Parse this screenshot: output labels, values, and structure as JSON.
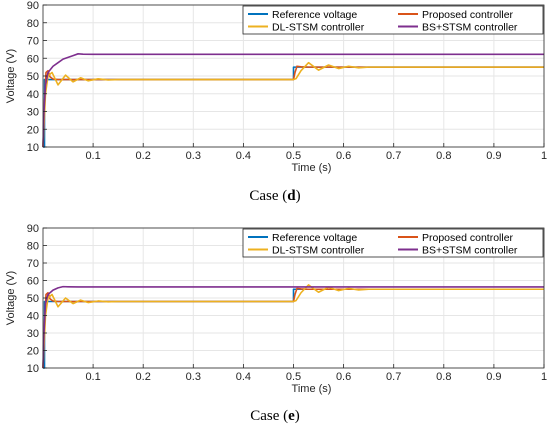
{
  "chart_data": [
    {
      "type": "line",
      "caption": {
        "prefix": "Case (",
        "letter": "d",
        "suffix": ")"
      },
      "xlabel": "Time (s)",
      "ylabel": "Voltage (V)",
      "xlim": [
        0,
        1
      ],
      "ylim": [
        10,
        90
      ],
      "xticks": [
        "0.1",
        "0.2",
        "0.3",
        "0.4",
        "0.5",
        "0.6",
        "0.7",
        "0.8",
        "0.9",
        "1"
      ],
      "yticks": [
        "10",
        "20",
        "30",
        "40",
        "50",
        "60",
        "70",
        "80",
        "90"
      ],
      "grid": true,
      "legend_position": "top-right",
      "series": [
        {
          "name": "Reference voltage",
          "color": "#0072bd",
          "x": [
            0,
            0.003,
            0.003,
            0.5,
            0.5,
            1
          ],
          "y": [
            10,
            10,
            48,
            48,
            55,
            55
          ]
        },
        {
          "name": "Proposed controller",
          "color": "#d95319",
          "x": [
            0,
            0.003,
            0.006,
            0.01,
            0.014,
            0.02,
            0.03,
            0.5,
            0.503,
            0.507,
            0.515,
            0.53,
            1
          ],
          "y": [
            10,
            35,
            52,
            53,
            49.5,
            48.3,
            48,
            48,
            52,
            55.5,
            55.2,
            55,
            55
          ]
        },
        {
          "name": "DL-STSM controller",
          "color": "#edb120",
          "x": [
            0,
            0.005,
            0.01,
            0.018,
            0.03,
            0.045,
            0.06,
            0.075,
            0.09,
            0.11,
            0.13,
            0.15,
            0.5,
            0.505,
            0.515,
            0.53,
            0.55,
            0.57,
            0.59,
            0.61,
            0.63,
            0.65,
            1
          ],
          "y": [
            10,
            40,
            50,
            52,
            45,
            50.5,
            46.7,
            49,
            47.3,
            48.4,
            47.8,
            48,
            48,
            48.5,
            53,
            57.5,
            53.3,
            56.2,
            54.2,
            55.5,
            54.6,
            55,
            55
          ]
        },
        {
          "name": "BS+STSM controller",
          "color": "#7e2f8e",
          "x": [
            0,
            0.002,
            0.005,
            0.01,
            0.02,
            0.03,
            0.04,
            0.05,
            0.06,
            0.07,
            0.08,
            0.1,
            1
          ],
          "y": [
            10,
            30,
            45,
            52,
            55.5,
            57.5,
            59.5,
            60.5,
            61.5,
            62.5,
            62.3,
            62.2,
            62.2
          ]
        }
      ]
    },
    {
      "type": "line",
      "caption": {
        "prefix": "Case (",
        "letter": "e",
        "suffix": ")"
      },
      "xlabel": "Time (s)",
      "ylabel": "Voltage (V)",
      "xlim": [
        0,
        1
      ],
      "ylim": [
        10,
        90
      ],
      "xticks": [
        "0.1",
        "0.2",
        "0.3",
        "0.4",
        "0.5",
        "0.6",
        "0.7",
        "0.8",
        "0.9",
        "1"
      ],
      "yticks": [
        "10",
        "20",
        "30",
        "40",
        "50",
        "60",
        "70",
        "80",
        "90"
      ],
      "grid": true,
      "legend_position": "top-right",
      "series": [
        {
          "name": "Reference voltage",
          "color": "#0072bd",
          "x": [
            0,
            0.003,
            0.003,
            0.5,
            0.5,
            1
          ],
          "y": [
            10,
            10,
            48,
            48,
            55,
            55
          ]
        },
        {
          "name": "Proposed controller",
          "color": "#d95319",
          "x": [
            0,
            0.003,
            0.006,
            0.01,
            0.014,
            0.02,
            0.03,
            0.5,
            0.503,
            0.507,
            0.515,
            0.53,
            1
          ],
          "y": [
            10,
            35,
            52,
            53,
            49.5,
            48.3,
            48,
            48,
            52,
            55.5,
            55.2,
            55,
            55
          ]
        },
        {
          "name": "DL-STSM controller",
          "color": "#edb120",
          "x": [
            0,
            0.005,
            0.01,
            0.018,
            0.03,
            0.045,
            0.06,
            0.075,
            0.09,
            0.11,
            0.13,
            0.15,
            0.5,
            0.505,
            0.515,
            0.53,
            0.55,
            0.57,
            0.59,
            0.61,
            0.63,
            0.65,
            1
          ],
          "y": [
            10,
            40,
            50,
            52,
            45,
            50,
            46.8,
            48.8,
            47.4,
            48.3,
            47.8,
            48,
            48,
            48.5,
            53,
            57.5,
            53.3,
            56.2,
            54.2,
            55.5,
            54.6,
            55,
            55
          ]
        },
        {
          "name": "BS+STSM controller",
          "color": "#7e2f8e",
          "x": [
            0,
            0.002,
            0.005,
            0.01,
            0.02,
            0.03,
            0.04,
            0.05,
            0.07,
            1
          ],
          "y": [
            10,
            30,
            47,
            52,
            54.5,
            55.8,
            56.5,
            56.4,
            56.3,
            56.3
          ]
        }
      ]
    }
  ]
}
